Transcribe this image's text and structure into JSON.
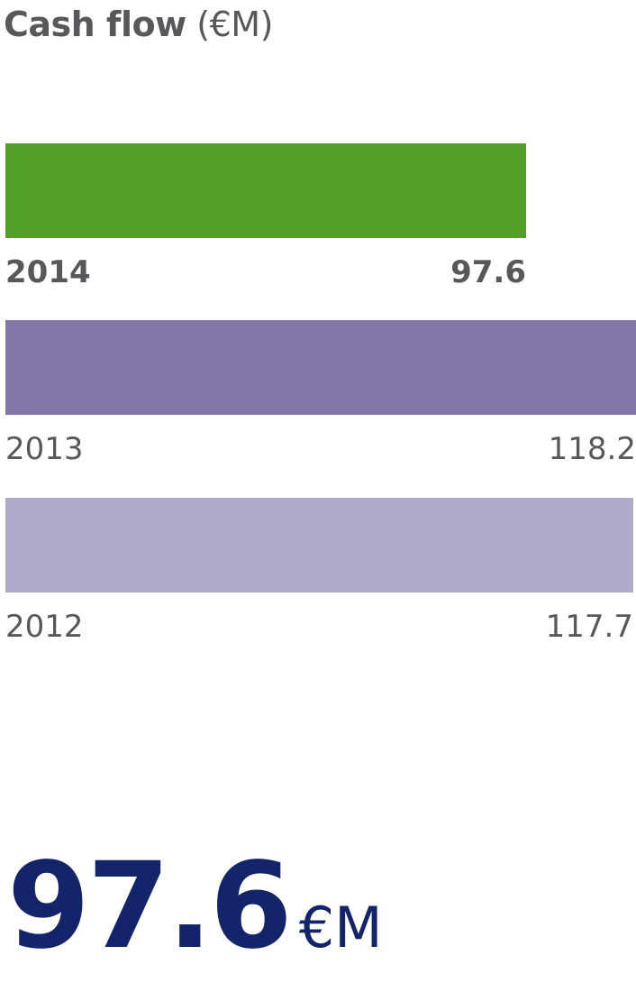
{
  "title": {
    "main": "Cash flow",
    "unit": "(€M)"
  },
  "colors": {
    "bar_2014": "#52a02a",
    "bar_2013": "#8178a9",
    "bar_2012": "#b0aacb",
    "text": "#58585a",
    "headline": "#13246b"
  },
  "chart_data": {
    "type": "bar",
    "orientation": "horizontal",
    "title": "Cash flow (€M)",
    "categories": [
      "2014",
      "2013",
      "2012"
    ],
    "values": [
      97.6,
      118.2,
      117.7
    ],
    "value_labels": [
      "97.6",
      "118.2",
      "117.7"
    ],
    "xlim": [
      0,
      118.2
    ],
    "grid": false,
    "legend": "none"
  },
  "headline": {
    "value": "97.6",
    "unit": "€M"
  }
}
